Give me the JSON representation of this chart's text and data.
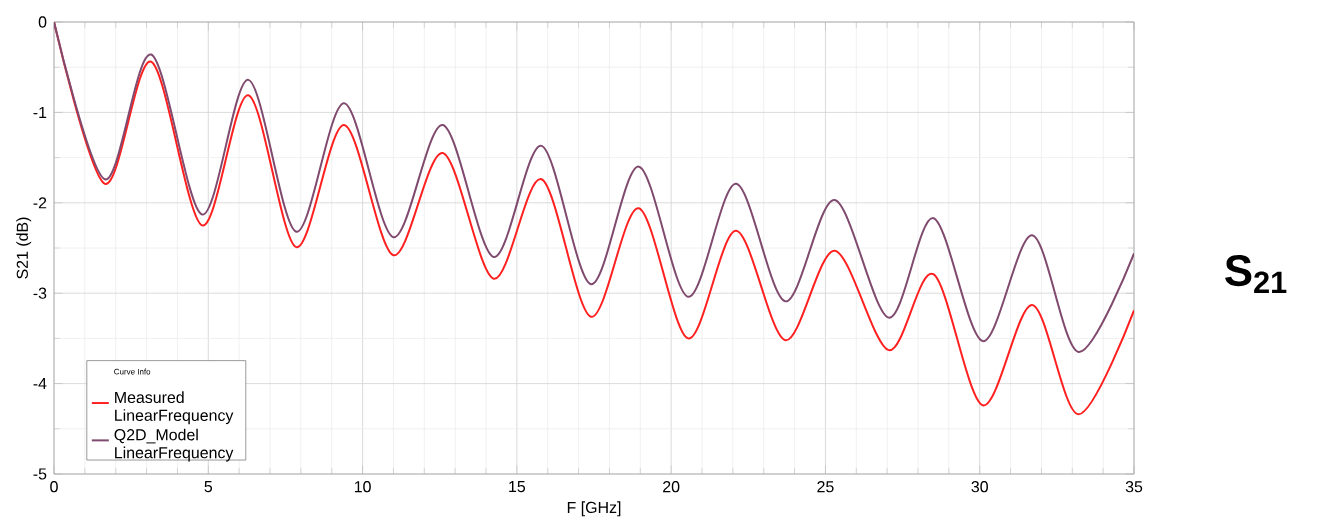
{
  "chart_data": {
    "type": "line",
    "xlabel": "F [GHz]",
    "ylabel": "S21 (dB)",
    "legend_title": "Curve Info",
    "x": [
      0,
      1.65,
      3.15,
      4.8,
      6.3,
      7.85,
      9.4,
      11,
      12.6,
      14.25,
      15.8,
      17.4,
      18.95,
      20.55,
      22.1,
      23.7,
      25.3,
      27.05,
      28.5,
      30.1,
      31.7,
      33.2,
      35
    ],
    "series": [
      {
        "name": "Measured LinearFrequency",
        "color": "#ff2020",
        "values": [
          0,
          -1.79,
          -0.44,
          -2.25,
          -0.81,
          -2.49,
          -1.14,
          -2.58,
          -1.45,
          -2.84,
          -1.74,
          -3.26,
          -2.06,
          -3.5,
          -2.31,
          -3.52,
          -2.53,
          -3.63,
          -2.79,
          -4.24,
          -3.13,
          -4.34,
          -3.19
        ]
      },
      {
        "name": "Q2D_Model LinearFrequency",
        "color": "#7f4a6e",
        "values": [
          0,
          -1.74,
          -0.36,
          -2.13,
          -0.64,
          -2.32,
          -0.9,
          -2.38,
          -1.14,
          -2.6,
          -1.37,
          -2.9,
          -1.6,
          -3.04,
          -1.79,
          -3.09,
          -1.97,
          -3.27,
          -2.17,
          -3.53,
          -2.36,
          -3.65,
          -2.56
        ]
      }
    ],
    "xlim": [
      0,
      35
    ],
    "xticks": [
      0,
      5,
      10,
      15,
      20,
      25,
      30,
      35
    ],
    "ylim": [
      -5,
      0
    ],
    "yticks": [
      -5,
      -4,
      -3,
      -2,
      -1,
      0
    ],
    "grid": true,
    "legend": "bottom left",
    "line_style": "solid",
    "marker": "none",
    "annotations": [
      "S$_{21}$"
    ]
  }
}
